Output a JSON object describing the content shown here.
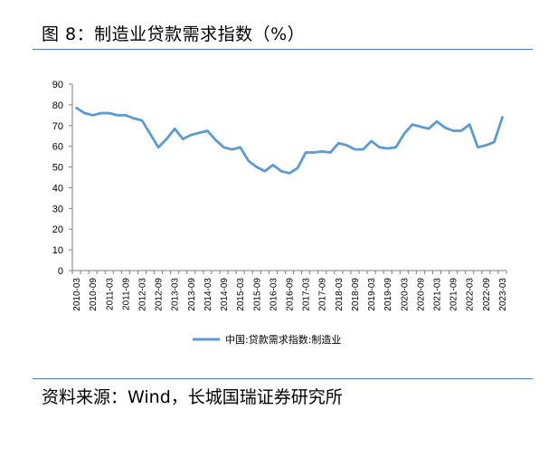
{
  "header": {
    "title": "图 8：制造业贷款需求指数（%）"
  },
  "footer": {
    "source": "资料来源：Wind，长城国瑞证券研究所"
  },
  "colors": {
    "series": "#5b9bd5",
    "rule": "#4a7fbf",
    "axis": "#7f7f7f"
  },
  "chart_data": {
    "type": "line",
    "title": "",
    "xlabel": "",
    "ylabel": "",
    "ylim": [
      0,
      90
    ],
    "yticks": [
      0,
      10,
      20,
      30,
      40,
      50,
      60,
      70,
      80,
      90
    ],
    "grid": false,
    "legend": "bottom-center",
    "x": [
      "2010-03",
      "2010-06",
      "2010-09",
      "2010-12",
      "2011-03",
      "2011-06",
      "2011-09",
      "2011-12",
      "2012-03",
      "2012-06",
      "2012-09",
      "2012-12",
      "2013-03",
      "2013-06",
      "2013-09",
      "2013-12",
      "2014-03",
      "2014-06",
      "2014-09",
      "2014-12",
      "2015-03",
      "2015-06",
      "2015-09",
      "2015-12",
      "2016-03",
      "2016-06",
      "2016-09",
      "2016-12",
      "2017-03",
      "2017-06",
      "2017-09",
      "2017-12",
      "2018-03",
      "2018-06",
      "2018-09",
      "2018-12",
      "2019-03",
      "2019-06",
      "2019-09",
      "2019-12",
      "2020-03",
      "2020-06",
      "2020-09",
      "2020-12",
      "2021-03",
      "2021-06",
      "2021-09",
      "2021-12",
      "2022-03",
      "2022-06",
      "2022-09",
      "2022-12",
      "2023-03"
    ],
    "xtick_labels": [
      "2010-03",
      "2010-09",
      "2011-03",
      "2011-09",
      "2012-03",
      "2012-09",
      "2013-03",
      "2013-09",
      "2014-03",
      "2014-09",
      "2015-03",
      "2015-09",
      "2016-03",
      "2016-09",
      "2017-03",
      "2017-09",
      "2018-03",
      "2018-09",
      "2019-03",
      "2019-09",
      "2020-03",
      "2020-09",
      "2021-03",
      "2021-09",
      "2022-03",
      "2022-09",
      "2023-03"
    ],
    "series": [
      {
        "name": "中国:贷款需求指数:制造业",
        "values": [
          78.5,
          76,
          75,
          76,
          76,
          75,
          75,
          73.5,
          72.5,
          66,
          59.5,
          63.5,
          68.5,
          63.5,
          65.5,
          66.5,
          67.5,
          63,
          59.5,
          58.5,
          59.5,
          53,
          50,
          48,
          51,
          48,
          47,
          49.5,
          57,
          57,
          57.5,
          57,
          61.5,
          60.5,
          58.5,
          58.5,
          62.5,
          59.5,
          59,
          59.5,
          66,
          70.5,
          69.5,
          68.5,
          72,
          69,
          67.5,
          67.5,
          70.5,
          59.5,
          60.5,
          62,
          74
        ]
      }
    ]
  }
}
